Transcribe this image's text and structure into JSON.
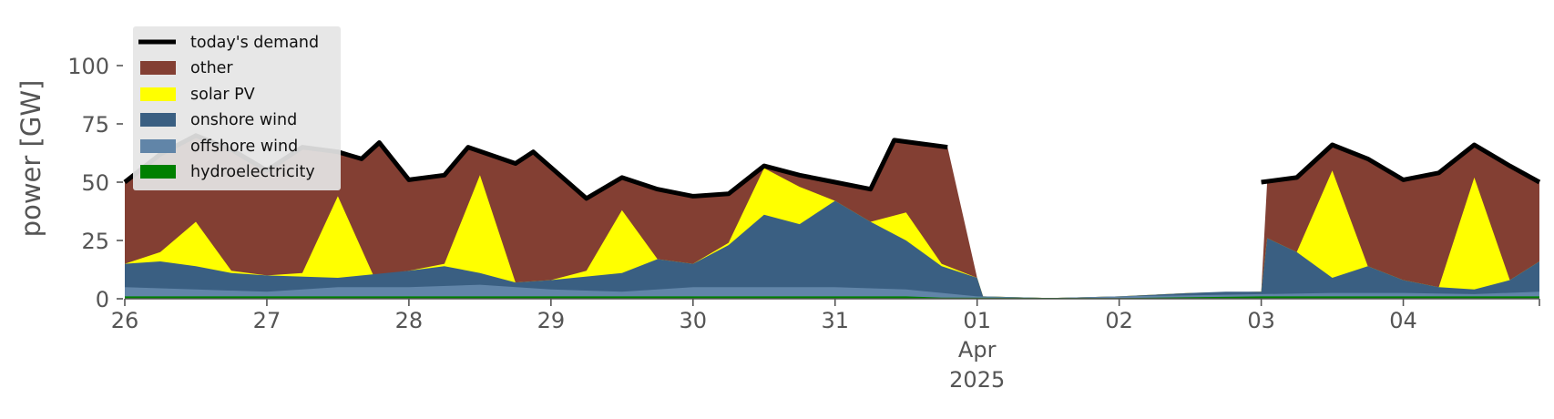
{
  "chart_data": {
    "type": "area",
    "ylabel": "power [GW]",
    "ylim": [
      0,
      120
    ],
    "y_ticks": [
      0,
      25,
      50,
      75,
      100
    ],
    "x_start": "2025-03-26T00:00",
    "x_end": "2025-04-04T23:00",
    "x_ticks": [
      {
        "date": "2025-03-26",
        "label": "26"
      },
      {
        "date": "2025-03-27",
        "label": "27"
      },
      {
        "date": "2025-03-28",
        "label": "28"
      },
      {
        "date": "2025-03-29",
        "label": "29"
      },
      {
        "date": "2025-03-30",
        "label": "30"
      },
      {
        "date": "2025-03-31",
        "label": "31"
      },
      {
        "date": "2025-04-01",
        "label": "01"
      },
      {
        "date": "2025-04-02",
        "label": "02"
      },
      {
        "date": "2025-04-03",
        "label": "03"
      },
      {
        "date": "2025-04-04",
        "label": "04"
      }
    ],
    "x_sublabel": {
      "date": "2025-04-01",
      "month": "Apr",
      "year": "2025"
    },
    "grid": false,
    "legend_position": "top-left",
    "legend_entries": [
      "today's demand",
      "other",
      "solar PV",
      "onshore wind",
      "offshore wind",
      "hydroelectricity"
    ],
    "colors": {
      "demand": "#000000",
      "other": "#833f33",
      "solar": "#ffff00",
      "onshore": "#3a5f82",
      "offshore": "#6185a8",
      "hydro": "#008000",
      "legend_bg": "#e5e5e5",
      "axis": "#555555"
    },
    "series": [
      {
        "key": "hydro",
        "name": "hydroelectricity",
        "kind": "area",
        "points": [
          {
            "x": "2025-03-26T00:00",
            "y": 1.0
          },
          {
            "x": "2025-03-31T12:00",
            "y": 1.0
          },
          {
            "x": "2025-03-31T18:00",
            "y": 0.5
          },
          {
            "x": "2025-04-02T00:00",
            "y": 0.3
          },
          {
            "x": "2025-04-03T00:00",
            "y": 1.0
          },
          {
            "x": "2025-04-04T23:00",
            "y": 1.0
          }
        ]
      },
      {
        "key": "offshore",
        "name": "offshore wind",
        "kind": "area",
        "points": [
          {
            "x": "2025-03-26T00:00",
            "y": 5.0
          },
          {
            "x": "2025-03-26T12:00",
            "y": 4.0
          },
          {
            "x": "2025-03-27T00:00",
            "y": 3.0
          },
          {
            "x": "2025-03-27T12:00",
            "y": 5.0
          },
          {
            "x": "2025-03-28T00:00",
            "y": 5.0
          },
          {
            "x": "2025-03-28T12:00",
            "y": 6.0
          },
          {
            "x": "2025-03-29T00:00",
            "y": 4.0
          },
          {
            "x": "2025-03-29T12:00",
            "y": 3.0
          },
          {
            "x": "2025-03-30T00:00",
            "y": 5.0
          },
          {
            "x": "2025-03-30T12:00",
            "y": 5.0
          },
          {
            "x": "2025-03-31T00:00",
            "y": 5.0
          },
          {
            "x": "2025-03-31T12:00",
            "y": 4.0
          },
          {
            "x": "2025-04-01T00:00",
            "y": 1.0
          },
          {
            "x": "2025-04-01T12:00",
            "y": 0.3
          },
          {
            "x": "2025-04-02T00:00",
            "y": 1.0
          },
          {
            "x": "2025-04-02T12:00",
            "y": 1.5
          },
          {
            "x": "2025-04-03T00:00",
            "y": 2.0
          },
          {
            "x": "2025-04-03T12:00",
            "y": 2.5
          },
          {
            "x": "2025-04-04T00:00",
            "y": 2.5
          },
          {
            "x": "2025-04-04T12:00",
            "y": 2.0
          },
          {
            "x": "2025-04-04T23:00",
            "y": 3.0
          }
        ]
      },
      {
        "key": "onshore",
        "name": "onshore wind",
        "kind": "area",
        "points": [
          {
            "x": "2025-03-26T00:00",
            "y": 15.0
          },
          {
            "x": "2025-03-26T06:00",
            "y": 16.0
          },
          {
            "x": "2025-03-26T12:00",
            "y": 14.0
          },
          {
            "x": "2025-03-26T18:00",
            "y": 11.0
          },
          {
            "x": "2025-03-27T00:00",
            "y": 10.0
          },
          {
            "x": "2025-03-27T12:00",
            "y": 9.0
          },
          {
            "x": "2025-03-28T00:00",
            "y": 12.0
          },
          {
            "x": "2025-03-28T06:00",
            "y": 14.0
          },
          {
            "x": "2025-03-28T12:00",
            "y": 11.0
          },
          {
            "x": "2025-03-28T18:00",
            "y": 7.0
          },
          {
            "x": "2025-03-29T00:00",
            "y": 8.0
          },
          {
            "x": "2025-03-29T12:00",
            "y": 11.0
          },
          {
            "x": "2025-03-29T18:00",
            "y": 17.0
          },
          {
            "x": "2025-03-30T00:00",
            "y": 15.0
          },
          {
            "x": "2025-03-30T06:00",
            "y": 23.0
          },
          {
            "x": "2025-03-30T12:00",
            "y": 36.0
          },
          {
            "x": "2025-03-30T18:00",
            "y": 32.0
          },
          {
            "x": "2025-03-31T00:00",
            "y": 42.0
          },
          {
            "x": "2025-03-31T06:00",
            "y": 33.0
          },
          {
            "x": "2025-03-31T12:00",
            "y": 25.0
          },
          {
            "x": "2025-03-31T18:00",
            "y": 14.0
          },
          {
            "x": "2025-04-01T00:00",
            "y": 9.0
          },
          {
            "x": "2025-04-01T01:00",
            "y": 1.0
          },
          {
            "x": "2025-04-01T12:00",
            "y": 0.3
          },
          {
            "x": "2025-04-02T00:00",
            "y": 1.0
          },
          {
            "x": "2025-04-02T12:00",
            "y": 2.5
          },
          {
            "x": "2025-04-02T18:00",
            "y": 3.0
          },
          {
            "x": "2025-04-03T00:00",
            "y": 3.0
          },
          {
            "x": "2025-04-03T01:00",
            "y": 26.0
          },
          {
            "x": "2025-04-03T06:00",
            "y": 20.0
          },
          {
            "x": "2025-04-03T12:00",
            "y": 9.0
          },
          {
            "x": "2025-04-03T18:00",
            "y": 14.0
          },
          {
            "x": "2025-04-04T00:00",
            "y": 8.0
          },
          {
            "x": "2025-04-04T06:00",
            "y": 5.0
          },
          {
            "x": "2025-04-04T12:00",
            "y": 4.0
          },
          {
            "x": "2025-04-04T18:00",
            "y": 8.0
          },
          {
            "x": "2025-04-04T23:00",
            "y": 16.0
          }
        ]
      },
      {
        "key": "solar",
        "name": "solar PV",
        "kind": "area",
        "points": [
          {
            "x": "2025-03-26T00:00",
            "y": 15.0
          },
          {
            "x": "2025-03-26T06:00",
            "y": 20.0
          },
          {
            "x": "2025-03-26T12:00",
            "y": 33.0
          },
          {
            "x": "2025-03-26T18:00",
            "y": 12.0
          },
          {
            "x": "2025-03-27T00:00",
            "y": 10.0
          },
          {
            "x": "2025-03-27T06:00",
            "y": 11.0
          },
          {
            "x": "2025-03-27T12:00",
            "y": 44.0
          },
          {
            "x": "2025-03-27T18:00",
            "y": 10.0
          },
          {
            "x": "2025-03-28T00:00",
            "y": 12.0
          },
          {
            "x": "2025-03-28T06:00",
            "y": 15.0
          },
          {
            "x": "2025-03-28T12:00",
            "y": 53.0
          },
          {
            "x": "2025-03-28T18:00",
            "y": 7.0
          },
          {
            "x": "2025-03-29T00:00",
            "y": 8.0
          },
          {
            "x": "2025-03-29T06:00",
            "y": 12.0
          },
          {
            "x": "2025-03-29T12:00",
            "y": 38.0
          },
          {
            "x": "2025-03-29T18:00",
            "y": 17.0
          },
          {
            "x": "2025-03-30T00:00",
            "y": 15.0
          },
          {
            "x": "2025-03-30T06:00",
            "y": 24.0
          },
          {
            "x": "2025-03-30T12:00",
            "y": 56.0
          },
          {
            "x": "2025-03-30T18:00",
            "y": 48.0
          },
          {
            "x": "2025-03-31T00:00",
            "y": 42.0
          },
          {
            "x": "2025-03-31T06:00",
            "y": 33.0
          },
          {
            "x": "2025-03-31T12:00",
            "y": 37.0
          },
          {
            "x": "2025-03-31T18:00",
            "y": 15.0
          },
          {
            "x": "2025-04-01T00:00",
            "y": 9.0
          },
          {
            "x": "2025-04-01T01:00",
            "y": 1.0
          },
          {
            "x": "2025-04-01T12:00",
            "y": 0.3
          },
          {
            "x": "2025-04-02T00:00",
            "y": 1.0
          },
          {
            "x": "2025-04-02T12:00",
            "y": 2.5
          },
          {
            "x": "2025-04-03T00:00",
            "y": 3.0
          },
          {
            "x": "2025-04-03T01:00",
            "y": 26.0
          },
          {
            "x": "2025-04-03T06:00",
            "y": 20.0
          },
          {
            "x": "2025-04-03T12:00",
            "y": 55.0
          },
          {
            "x": "2025-04-03T18:00",
            "y": 14.0
          },
          {
            "x": "2025-04-04T00:00",
            "y": 8.0
          },
          {
            "x": "2025-04-04T06:00",
            "y": 5.0
          },
          {
            "x": "2025-04-04T12:00",
            "y": 52.0
          },
          {
            "x": "2025-04-04T18:00",
            "y": 8.0
          },
          {
            "x": "2025-04-04T23:00",
            "y": 16.0
          }
        ]
      },
      {
        "key": "other",
        "name": "other",
        "kind": "area",
        "points": [
          {
            "x": "2025-03-26T00:00",
            "y": 50.0
          },
          {
            "x": "2025-03-26T06:00",
            "y": 62.0
          },
          {
            "x": "2025-03-26T12:00",
            "y": 70.0
          },
          {
            "x": "2025-03-26T18:00",
            "y": 64.0
          },
          {
            "x": "2025-03-27T00:00",
            "y": 55.0
          },
          {
            "x": "2025-03-27T06:00",
            "y": 65.0
          },
          {
            "x": "2025-03-27T12:00",
            "y": 63.0
          },
          {
            "x": "2025-03-27T16:00",
            "y": 60.0
          },
          {
            "x": "2025-03-27T19:00",
            "y": 67.0
          },
          {
            "x": "2025-03-28T00:00",
            "y": 51.0
          },
          {
            "x": "2025-03-28T06:00",
            "y": 53.0
          },
          {
            "x": "2025-03-28T10:00",
            "y": 65.0
          },
          {
            "x": "2025-03-28T18:00",
            "y": 58.0
          },
          {
            "x": "2025-03-28T21:00",
            "y": 63.0
          },
          {
            "x": "2025-03-29T06:00",
            "y": 43.0
          },
          {
            "x": "2025-03-29T12:00",
            "y": 52.0
          },
          {
            "x": "2025-03-29T18:00",
            "y": 47.0
          },
          {
            "x": "2025-03-30T00:00",
            "y": 44.0
          },
          {
            "x": "2025-03-30T06:00",
            "y": 45.0
          },
          {
            "x": "2025-03-30T12:00",
            "y": 57.0
          },
          {
            "x": "2025-03-30T18:00",
            "y": 53.0
          },
          {
            "x": "2025-03-31T00:00",
            "y": 50.0
          },
          {
            "x": "2025-03-31T06:00",
            "y": 47.0
          },
          {
            "x": "2025-03-31T10:00",
            "y": 68.0
          },
          {
            "x": "2025-03-31T19:00",
            "y": 65.0
          },
          {
            "x": "2025-04-01T00:00",
            "y": 9.0
          },
          {
            "x": "2025-04-01T01:00",
            "y": 1.0
          },
          {
            "x": "2025-04-01T12:00",
            "y": 0.3
          },
          {
            "x": "2025-04-02T00:00",
            "y": 1.0
          },
          {
            "x": "2025-04-02T12:00",
            "y": 2.5
          },
          {
            "x": "2025-04-03T00:00",
            "y": 3.0
          },
          {
            "x": "2025-04-03T01:00",
            "y": 50.0
          },
          {
            "x": "2025-04-03T06:00",
            "y": 52.0
          },
          {
            "x": "2025-04-03T12:00",
            "y": 66.0
          },
          {
            "x": "2025-04-03T18:00",
            "y": 60.0
          },
          {
            "x": "2025-04-04T00:00",
            "y": 51.0
          },
          {
            "x": "2025-04-04T06:00",
            "y": 54.0
          },
          {
            "x": "2025-04-04T12:00",
            "y": 66.0
          },
          {
            "x": "2025-04-04T18:00",
            "y": 57.0
          },
          {
            "x": "2025-04-04T23:00",
            "y": 50.0
          }
        ]
      },
      {
        "key": "demand",
        "name": "today's demand",
        "kind": "line",
        "segments": [
          [
            {
              "x": "2025-03-26T00:00",
              "y": 50.0
            },
            {
              "x": "2025-03-26T06:00",
              "y": 62.0
            },
            {
              "x": "2025-03-26T12:00",
              "y": 70.0
            },
            {
              "x": "2025-03-26T18:00",
              "y": 64.0
            },
            {
              "x": "2025-03-27T00:00",
              "y": 55.0
            },
            {
              "x": "2025-03-27T06:00",
              "y": 65.0
            },
            {
              "x": "2025-03-27T12:00",
              "y": 63.0
            },
            {
              "x": "2025-03-27T16:00",
              "y": 60.0
            },
            {
              "x": "2025-03-27T19:00",
              "y": 67.0
            },
            {
              "x": "2025-03-28T00:00",
              "y": 51.0
            },
            {
              "x": "2025-03-28T06:00",
              "y": 53.0
            },
            {
              "x": "2025-03-28T10:00",
              "y": 65.0
            },
            {
              "x": "2025-03-28T18:00",
              "y": 58.0
            },
            {
              "x": "2025-03-28T21:00",
              "y": 63.0
            },
            {
              "x": "2025-03-29T06:00",
              "y": 43.0
            },
            {
              "x": "2025-03-29T12:00",
              "y": 52.0
            },
            {
              "x": "2025-03-29T18:00",
              "y": 47.0
            },
            {
              "x": "2025-03-30T00:00",
              "y": 44.0
            },
            {
              "x": "2025-03-30T06:00",
              "y": 45.0
            },
            {
              "x": "2025-03-30T12:00",
              "y": 57.0
            },
            {
              "x": "2025-03-30T18:00",
              "y": 53.0
            },
            {
              "x": "2025-03-31T00:00",
              "y": 50.0
            },
            {
              "x": "2025-03-31T06:00",
              "y": 47.0
            },
            {
              "x": "2025-03-31T10:00",
              "y": 68.0
            },
            {
              "x": "2025-03-31T19:00",
              "y": 65.0
            }
          ],
          [
            {
              "x": "2025-04-03T00:00",
              "y": 50.0
            },
            {
              "x": "2025-04-03T06:00",
              "y": 52.0
            },
            {
              "x": "2025-04-03T12:00",
              "y": 66.0
            },
            {
              "x": "2025-04-03T18:00",
              "y": 60.0
            },
            {
              "x": "2025-04-04T00:00",
              "y": 51.0
            },
            {
              "x": "2025-04-04T06:00",
              "y": 54.0
            },
            {
              "x": "2025-04-04T12:00",
              "y": 66.0
            },
            {
              "x": "2025-04-04T18:00",
              "y": 57.0
            },
            {
              "x": "2025-04-04T23:00",
              "y": 50.0
            }
          ]
        ]
      }
    ]
  }
}
